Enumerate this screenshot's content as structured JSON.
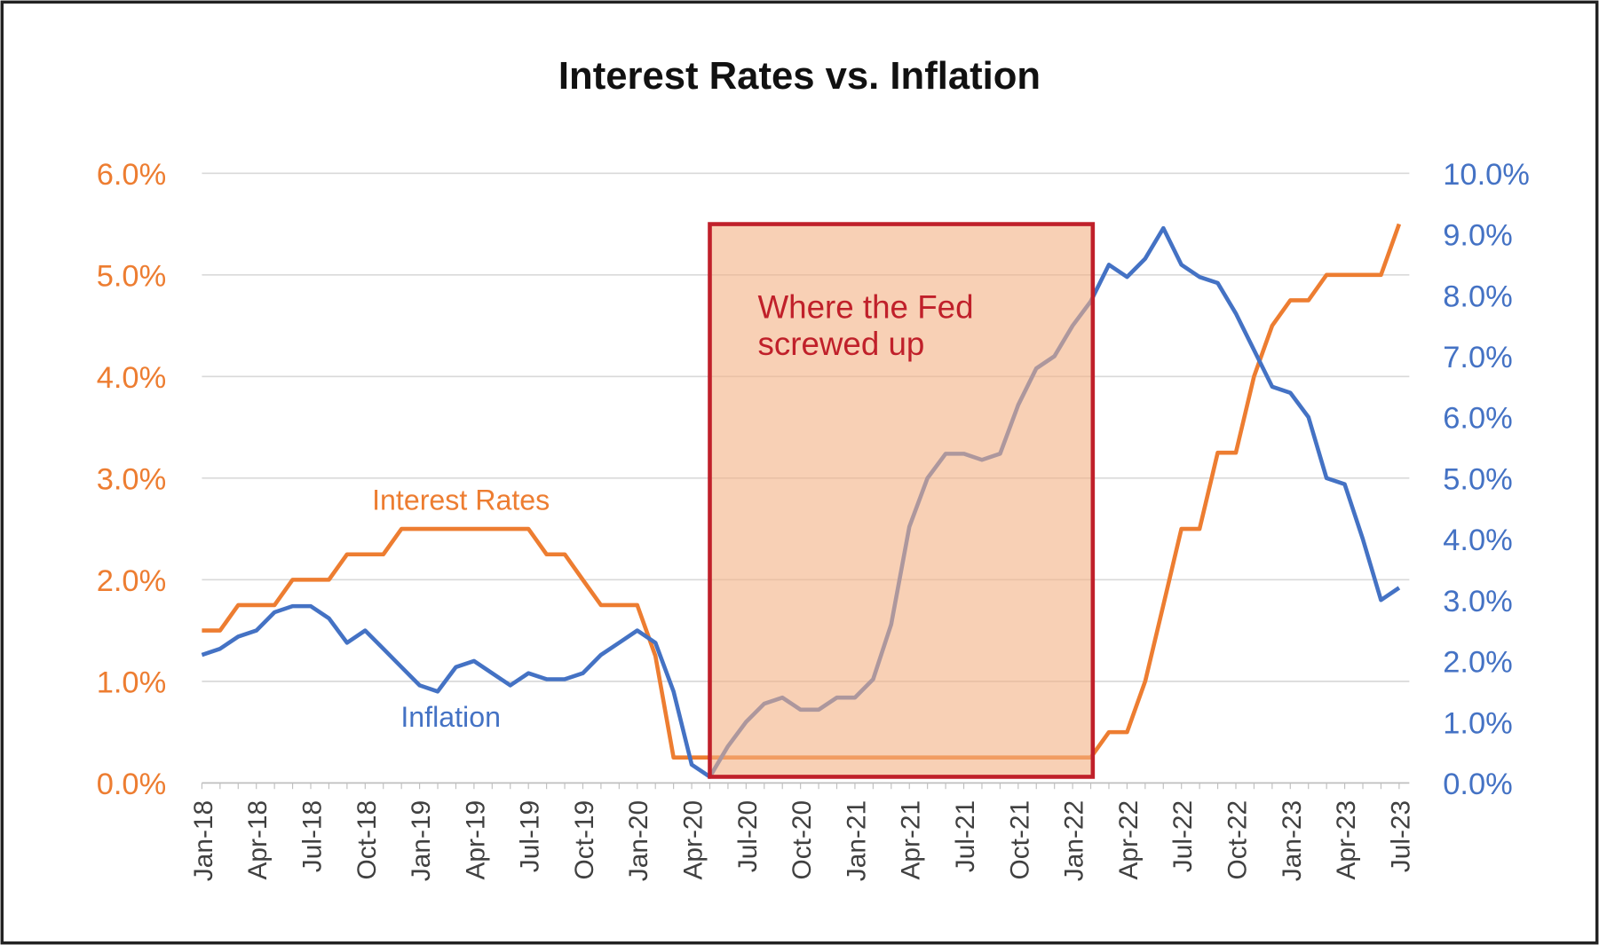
{
  "chart_data": {
    "type": "line",
    "title": "Interest Rates vs. Inflation",
    "x": [
      "Jan-18",
      "Feb-18",
      "Mar-18",
      "Apr-18",
      "May-18",
      "Jun-18",
      "Jul-18",
      "Aug-18",
      "Sep-18",
      "Oct-18",
      "Nov-18",
      "Dec-18",
      "Jan-19",
      "Feb-19",
      "Mar-19",
      "Apr-19",
      "May-19",
      "Jun-19",
      "Jul-19",
      "Aug-19",
      "Sep-19",
      "Oct-19",
      "Nov-19",
      "Dec-19",
      "Jan-20",
      "Feb-20",
      "Mar-20",
      "Apr-20",
      "May-20",
      "Jun-20",
      "Jul-20",
      "Aug-20",
      "Sep-20",
      "Oct-20",
      "Nov-20",
      "Dec-20",
      "Jan-21",
      "Feb-21",
      "Mar-21",
      "Apr-21",
      "May-21",
      "Jun-21",
      "Jul-21",
      "Aug-21",
      "Sep-21",
      "Oct-21",
      "Nov-21",
      "Dec-21",
      "Jan-22",
      "Feb-22",
      "Mar-22",
      "Apr-22",
      "May-22",
      "Jun-22",
      "Jul-22",
      "Aug-22",
      "Sep-22",
      "Oct-22",
      "Nov-22",
      "Dec-22",
      "Jan-23",
      "Feb-23",
      "Mar-23",
      "Apr-23",
      "May-23",
      "Jun-23",
      "Jul-23"
    ],
    "x_tick_labels": [
      "Jan-18",
      "Apr-18",
      "Jul-18",
      "Oct-18",
      "Jan-19",
      "Apr-19",
      "Jul-19",
      "Oct-19",
      "Jan-20",
      "Apr-20",
      "Jul-20",
      "Oct-20",
      "Jan-21",
      "Apr-21",
      "Jul-21",
      "Oct-21",
      "Jan-22",
      "Apr-22",
      "Jul-22",
      "Oct-22",
      "Jan-23",
      "Apr-23",
      "Jul-23"
    ],
    "series": [
      {
        "name": "Interest Rates",
        "axis": "left",
        "color": "#ed7d31",
        "values": [
          1.5,
          1.5,
          1.75,
          1.75,
          1.75,
          2.0,
          2.0,
          2.0,
          2.25,
          2.25,
          2.25,
          2.5,
          2.5,
          2.5,
          2.5,
          2.5,
          2.5,
          2.5,
          2.5,
          2.25,
          2.25,
          2.0,
          1.75,
          1.75,
          1.75,
          1.25,
          0.25,
          0.25,
          0.25,
          0.25,
          0.25,
          0.25,
          0.25,
          0.25,
          0.25,
          0.25,
          0.25,
          0.25,
          0.25,
          0.25,
          0.25,
          0.25,
          0.25,
          0.25,
          0.25,
          0.25,
          0.25,
          0.25,
          0.25,
          0.25,
          0.5,
          0.5,
          1.0,
          1.75,
          2.5,
          2.5,
          3.25,
          3.25,
          4.0,
          4.5,
          4.75,
          4.75,
          5.0,
          5.0,
          5.0,
          5.0,
          5.5
        ]
      },
      {
        "name": "Inflation",
        "axis": "right",
        "color": "#4472c4",
        "values": [
          2.1,
          2.2,
          2.4,
          2.5,
          2.8,
          2.9,
          2.9,
          2.7,
          2.3,
          2.5,
          2.2,
          1.9,
          1.6,
          1.5,
          1.9,
          2.0,
          1.8,
          1.6,
          1.8,
          1.7,
          1.7,
          1.8,
          2.1,
          2.3,
          2.5,
          2.3,
          1.5,
          0.3,
          0.1,
          0.6,
          1.0,
          1.3,
          1.4,
          1.2,
          1.2,
          1.4,
          1.4,
          1.7,
          2.6,
          4.2,
          5.0,
          5.4,
          5.4,
          5.3,
          5.4,
          6.2,
          6.8,
          7.0,
          7.5,
          7.9,
          8.5,
          8.3,
          8.6,
          9.1,
          8.5,
          8.3,
          8.2,
          7.7,
          7.1,
          6.5,
          6.4,
          6.0,
          5.0,
          4.9,
          4.0,
          3.0,
          3.2
        ]
      }
    ],
    "left_axis": {
      "ylim": [
        0,
        6
      ],
      "ticks": [
        "0.0%",
        "1.0%",
        "2.0%",
        "3.0%",
        "4.0%",
        "5.0%",
        "6.0%"
      ],
      "color": "#ed7d31"
    },
    "right_axis": {
      "ylim": [
        0,
        10
      ],
      "ticks": [
        "0.0%",
        "1.0%",
        "2.0%",
        "3.0%",
        "4.0%",
        "5.0%",
        "6.0%",
        "7.0%",
        "8.0%",
        "9.0%",
        "10.0%"
      ],
      "color": "#4472c4"
    },
    "grid": true,
    "series_labels": {
      "interest": "Interest Rates",
      "inflation": "Inflation"
    },
    "annotation": {
      "text_line1": "Where the Fed",
      "text_line2": "screwed up",
      "start": "May-20",
      "end": "Feb-22",
      "top_left_axis": 5.5,
      "bottom_left_axis": 0.06,
      "fill": "#f4b183",
      "border": "#c0202a"
    }
  }
}
